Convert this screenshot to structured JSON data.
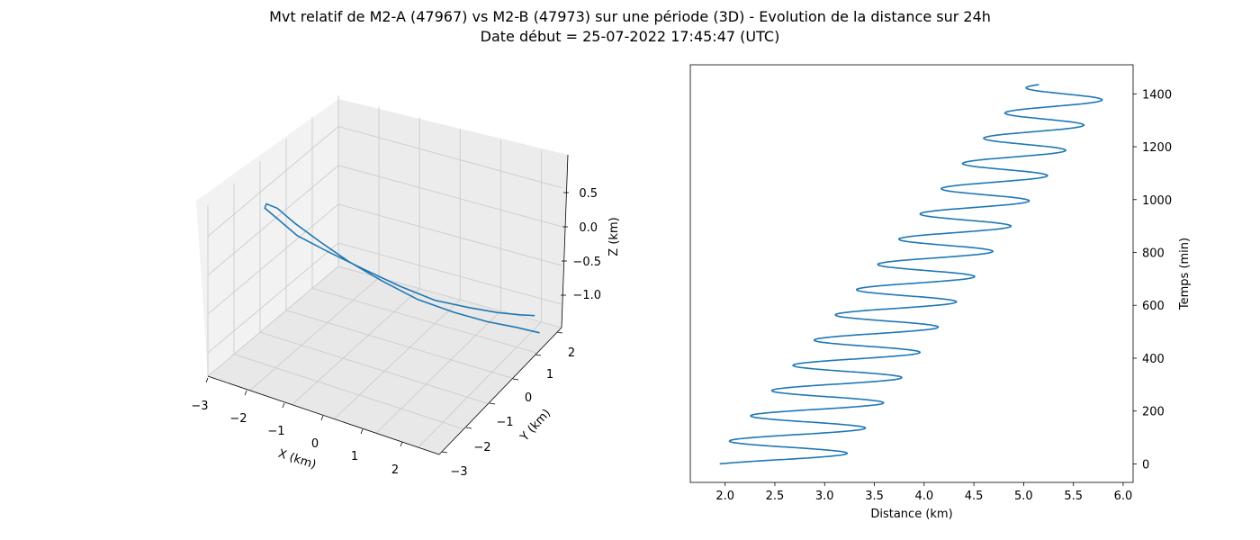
{
  "figure": {
    "title_line1": "Mvt relatif de M2-A (47967) vs M2-B (47973) sur une période (3D) - Evolution de la distance sur 24h",
    "title_line2": "Date début = 25-07-2022 17:45:47 (UTC)"
  },
  "colors": {
    "series": "#1f77b4",
    "pane": "#f2f2f2",
    "grid": "#cccccc"
  },
  "chart_data": [
    {
      "type": "line3d",
      "xlabel": "X (km)",
      "ylabel": "Y (km)",
      "zlabel": "Z (km)",
      "xticks": [
        "−3",
        "−2",
        "−1",
        "0",
        "1",
        "2"
      ],
      "yticks": [
        "−3",
        "−2",
        "−1",
        "0",
        "1",
        "2"
      ],
      "zticks": [
        "−1.0",
        "−0.5",
        "0.0",
        "0.5"
      ],
      "xlim": [
        -3,
        2.5
      ],
      "ylim": [
        -3,
        2
      ],
      "zlim": [
        -1.3,
        0.9
      ],
      "grid": true,
      "series": [
        {
          "points": [
            [
              2.2,
              1.6,
              -1.28
            ],
            [
              1.85,
              1.25,
              -1.15
            ],
            [
              1.4,
              0.8,
              -1.0
            ],
            [
              0.9,
              0.3,
              -0.8
            ],
            [
              0.35,
              -0.25,
              -0.55
            ],
            [
              -0.2,
              -0.75,
              -0.25
            ],
            [
              -0.75,
              -1.2,
              0.05
            ],
            [
              -1.2,
              -1.6,
              0.35
            ],
            [
              -1.6,
              -1.9,
              0.6
            ],
            [
              -1.9,
              -2.1,
              0.8
            ],
            [
              -2.1,
              -2.2,
              0.85
            ],
            [
              -2.2,
              -2.1,
              0.75
            ],
            [
              -2.1,
              -1.8,
              0.55
            ],
            [
              -1.85,
              -1.4,
              0.25
            ],
            [
              -1.45,
              -0.85,
              -0.05
            ],
            [
              -0.95,
              -0.3,
              -0.35
            ],
            [
              -0.4,
              0.25,
              -0.65
            ],
            [
              0.15,
              0.75,
              -0.9
            ],
            [
              0.7,
              1.2,
              -1.05
            ],
            [
              1.2,
              1.55,
              -1.15
            ],
            [
              1.6,
              1.8,
              -1.2
            ],
            [
              1.9,
              1.9,
              -1.2
            ]
          ]
        }
      ]
    },
    {
      "type": "line",
      "xlabel": "Distance (km)",
      "ylabel": "Temps (min)",
      "xticks": [
        2.0,
        2.5,
        3.0,
        3.5,
        4.0,
        4.5,
        5.0,
        5.5,
        6.0
      ],
      "yticks": [
        0,
        200,
        400,
        600,
        800,
        1000,
        1200,
        1400
      ],
      "xlim": [
        1.65,
        6.1
      ],
      "ylim": [
        -70,
        1510
      ],
      "grid": false,
      "yaxis_position": "right",
      "series": [
        {
          "x_expr": "distance(t) = (1.85 + 0.00225*t) + (0.65 + 0.0000694*t) * 0.5*(1 - cos(2*pi*t/95.5)) adjusted to start at 2.25 km",
          "y_range": [
            0,
            1435
          ],
          "orbital_period_min": 95.5,
          "start_distance": 2.25,
          "minima_at_start": 1.85,
          "maxima_at_start": 3.15,
          "minima_at_end": 5.05,
          "maxima_at_end": 5.9
        }
      ]
    }
  ]
}
